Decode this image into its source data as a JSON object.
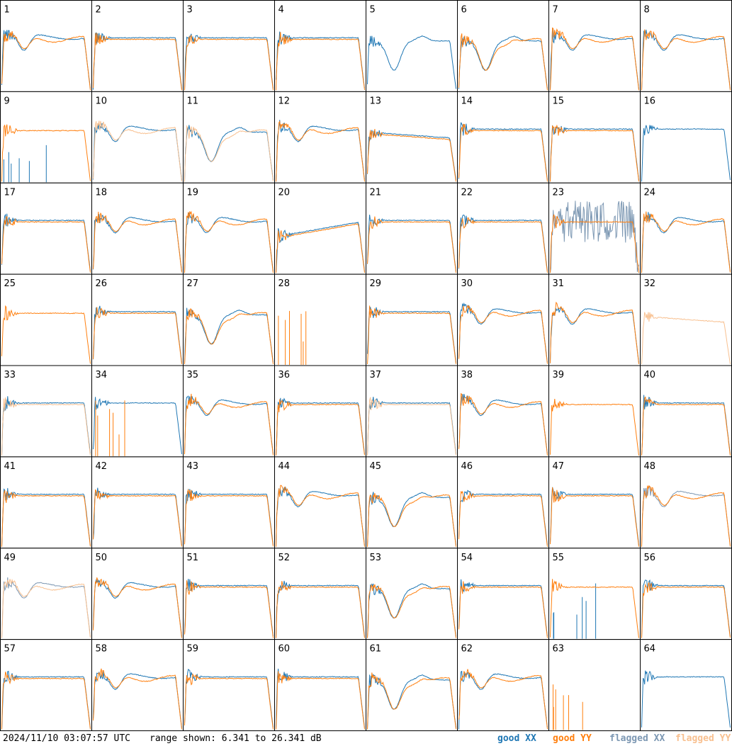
{
  "colors": {
    "good_xx": "#1f77b4",
    "good_yy": "#ff7f0e",
    "flagged_xx": "#7d98b3",
    "flagged_yy": "#f8c090"
  },
  "footer": {
    "timestamp": "2024/11/10 03:07:57 UTC",
    "range_text": "range shown: 6.341 to 26.341 dB",
    "legend_good_xx": "good XX",
    "legend_good_yy": "good YY",
    "legend_flagged_xx": "flagged XX",
    "legend_flagged_yy": "flagged YY"
  },
  "chart_data": {
    "type": "line",
    "grid": {
      "rows": 8,
      "cols": 8
    },
    "xlabel": "",
    "ylabel": "",
    "ylim": [
      6.341,
      26.341
    ],
    "legend": "bottom-right",
    "panels": [
      {
        "label": "1",
        "shape": "dip",
        "xx": "good",
        "yy": "good"
      },
      {
        "label": "2",
        "shape": "flat",
        "xx": "good",
        "yy": "good"
      },
      {
        "label": "3",
        "shape": "flat",
        "xx": "good",
        "yy": "good"
      },
      {
        "label": "4",
        "shape": "flat",
        "xx": "good",
        "yy": "good"
      },
      {
        "label": "5",
        "shape": "deepdip",
        "xx": "good",
        "yy": "none"
      },
      {
        "label": "6",
        "shape": "deepdip",
        "xx": "good",
        "yy": "good"
      },
      {
        "label": "7",
        "shape": "dip",
        "xx": "good",
        "yy": "good"
      },
      {
        "label": "8",
        "shape": "dip",
        "xx": "good",
        "yy": "good"
      },
      {
        "label": "9",
        "shape": "flat",
        "xx": "sparse",
        "yy": "good"
      },
      {
        "label": "10",
        "shape": "dip",
        "xx": "good",
        "yy": "flagged"
      },
      {
        "label": "11",
        "shape": "deepdip",
        "xx": "good",
        "yy": "flagged"
      },
      {
        "label": "12",
        "shape": "dip",
        "xx": "good",
        "yy": "good"
      },
      {
        "label": "13",
        "shape": "slope",
        "xx": "good",
        "yy": "good"
      },
      {
        "label": "14",
        "shape": "flat",
        "xx": "good",
        "yy": "good"
      },
      {
        "label": "15",
        "shape": "flat",
        "xx": "good",
        "yy": "good"
      },
      {
        "label": "16",
        "shape": "flat",
        "xx": "good",
        "yy": "none"
      },
      {
        "label": "17",
        "shape": "flat",
        "xx": "good",
        "yy": "good"
      },
      {
        "label": "18",
        "shape": "dip",
        "xx": "good",
        "yy": "good"
      },
      {
        "label": "19",
        "shape": "dip",
        "xx": "good",
        "yy": "good"
      },
      {
        "label": "20",
        "shape": "rise",
        "xx": "good",
        "yy": "good"
      },
      {
        "label": "21",
        "shape": "flat",
        "xx": "good",
        "yy": "good"
      },
      {
        "label": "22",
        "shape": "flat",
        "xx": "good",
        "yy": "good"
      },
      {
        "label": "23",
        "shape": "flat",
        "xx": "noise",
        "yy": "good"
      },
      {
        "label": "24",
        "shape": "dip",
        "xx": "good",
        "yy": "good"
      },
      {
        "label": "25",
        "shape": "flat",
        "xx": "none",
        "yy": "good"
      },
      {
        "label": "26",
        "shape": "flat",
        "xx": "good",
        "yy": "good"
      },
      {
        "label": "27",
        "shape": "deepdip",
        "xx": "good",
        "yy": "good"
      },
      {
        "label": "28",
        "shape": "spikes",
        "xx": "none",
        "yy": "spikes"
      },
      {
        "label": "29",
        "shape": "flat",
        "xx": "good",
        "yy": "good"
      },
      {
        "label": "30",
        "shape": "dip",
        "xx": "good",
        "yy": "good"
      },
      {
        "label": "31",
        "shape": "dip",
        "xx": "good",
        "yy": "good"
      },
      {
        "label": "32",
        "shape": "slope",
        "xx": "none",
        "yy": "flagged"
      },
      {
        "label": "33",
        "shape": "flat",
        "xx": "good",
        "yy": "flagged"
      },
      {
        "label": "34",
        "shape": "flat",
        "xx": "good",
        "yy": "spikes"
      },
      {
        "label": "35",
        "shape": "dip",
        "xx": "good",
        "yy": "good"
      },
      {
        "label": "36",
        "shape": "flat",
        "xx": "good",
        "yy": "good"
      },
      {
        "label": "37",
        "shape": "flat",
        "xx": "good",
        "yy": "flagged"
      },
      {
        "label": "38",
        "shape": "dip",
        "xx": "good",
        "yy": "good"
      },
      {
        "label": "39",
        "shape": "flat",
        "xx": "none",
        "yy": "good"
      },
      {
        "label": "40",
        "shape": "flat",
        "xx": "good",
        "yy": "good"
      },
      {
        "label": "41",
        "shape": "flat",
        "xx": "good",
        "yy": "good"
      },
      {
        "label": "42",
        "shape": "flat",
        "xx": "good",
        "yy": "good"
      },
      {
        "label": "43",
        "shape": "flat",
        "xx": "good",
        "yy": "good"
      },
      {
        "label": "44",
        "shape": "dip",
        "xx": "good",
        "yy": "good"
      },
      {
        "label": "45",
        "shape": "deepdip",
        "xx": "good",
        "yy": "good"
      },
      {
        "label": "46",
        "shape": "flat",
        "xx": "good",
        "yy": "good"
      },
      {
        "label": "47",
        "shape": "flat",
        "xx": "good",
        "yy": "good"
      },
      {
        "label": "48",
        "shape": "dip",
        "xx": "flagged",
        "yy": "good"
      },
      {
        "label": "49",
        "shape": "dip",
        "xx": "flagged",
        "yy": "flagged"
      },
      {
        "label": "50",
        "shape": "dip",
        "xx": "good",
        "yy": "good"
      },
      {
        "label": "51",
        "shape": "flat",
        "xx": "good",
        "yy": "good"
      },
      {
        "label": "52",
        "shape": "flat",
        "xx": "good",
        "yy": "good"
      },
      {
        "label": "53",
        "shape": "deepdip",
        "xx": "good",
        "yy": "good"
      },
      {
        "label": "54",
        "shape": "flat",
        "xx": "good",
        "yy": "good"
      },
      {
        "label": "55",
        "shape": "flat",
        "xx": "sparse",
        "yy": "good"
      },
      {
        "label": "56",
        "shape": "flat",
        "xx": "good",
        "yy": "good"
      },
      {
        "label": "57",
        "shape": "flat",
        "xx": "good",
        "yy": "good"
      },
      {
        "label": "58",
        "shape": "dip",
        "xx": "good",
        "yy": "good"
      },
      {
        "label": "59",
        "shape": "flat",
        "xx": "good",
        "yy": "good"
      },
      {
        "label": "60",
        "shape": "flat",
        "xx": "good",
        "yy": "good"
      },
      {
        "label": "61",
        "shape": "deepdip",
        "xx": "good",
        "yy": "good"
      },
      {
        "label": "62",
        "shape": "dip",
        "xx": "good",
        "yy": "good"
      },
      {
        "label": "63",
        "shape": "spikes",
        "xx": "none",
        "yy": "spikes"
      },
      {
        "label": "64",
        "shape": "flat",
        "xx": "good",
        "yy": "none"
      }
    ]
  }
}
